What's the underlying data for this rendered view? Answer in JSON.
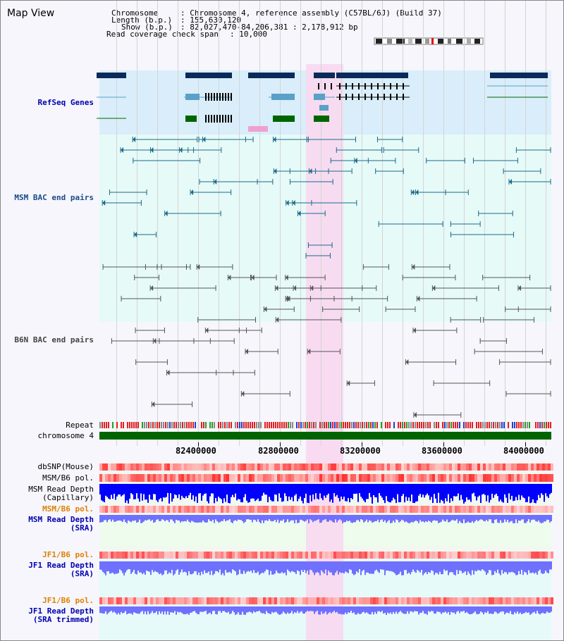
{
  "view_title": "Map View",
  "header": {
    "chromosome_label": "Chromosome",
    "chromosome_value": ": Chromosome 4, reference assembly (C57BL/6J) (Build 37)",
    "length_label": "Length (b.p.)",
    "length_value": ": 155,630,120",
    "show_label": "Show (b.p.)",
    "show_value": ": 82,027,470-84,206,381 : 2,178,912 bp",
    "coverage_label": "Read coverage check span",
    "coverage_value": ": 10,000"
  },
  "tracks": {
    "refseq": "RefSeq Genes",
    "msm_bac": "MSM BAC end pairs",
    "b6n_bac": "B6N BAC end pairs",
    "repeat": "Repeat",
    "chromosome": "chromosome 4",
    "dbsnp": "dbSNP(Mouse)",
    "msm_b6_pol_1": "MSM/B6 pol.",
    "msm_read_depth_cap_1": "MSM Read Depth",
    "msm_read_depth_cap_2": "(Capillary)",
    "msm_b6_pol_2": "MSM/B6 pol.",
    "msm_read_depth_sra_1": "MSM Read Depth",
    "msm_read_depth_sra_2": "(SRA)",
    "jf1_b6_pol_1": "JF1/B6 pol.",
    "jf1_read_depth_sra_1": "JF1 Read Depth",
    "jf1_read_depth_sra_2": "(SRA)",
    "jf1_b6_pol_2": "JF1/B6 pol.",
    "jf1_read_depth_trim_1": "JF1 Read Depth",
    "jf1_read_depth_trim_2": "(SRA trimmed)"
  },
  "axis_ticks": [
    "82400000",
    "82800000",
    "83200000",
    "83600000",
    "84000000"
  ],
  "colors": {
    "refseq_bg": "#d9eefa",
    "msm_bg": "#e6faf8",
    "highlight": "#f8d8f0",
    "gene_navy": "#0a2a5a",
    "gene_teal": "#5aa0c8",
    "gene_green": "#006400",
    "msm_pair": "#1a6a8a",
    "b6n_pair": "#555555",
    "chromosome_bar": "#006400",
    "label_blue": "#0000b0",
    "label_orange": "#e08000",
    "depth_blue": "#0000ff",
    "depth_light": "#7070ff"
  }
}
